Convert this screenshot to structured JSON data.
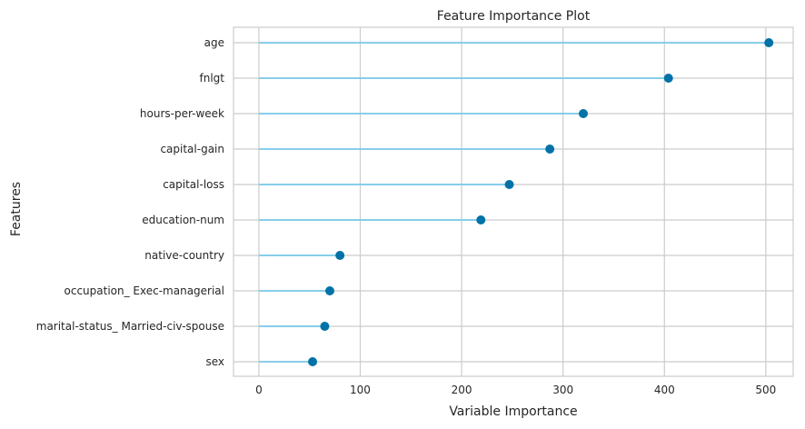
{
  "chart_data": {
    "type": "lollipop",
    "orientation": "horizontal",
    "title": "Feature Importance Plot",
    "xlabel": "Variable Importance",
    "ylabel": "Features",
    "xlim": [
      -25,
      527
    ],
    "xticks": [
      0,
      100,
      200,
      300,
      400,
      500
    ],
    "grid": true,
    "categories": [
      "age",
      "fnlgt",
      "hours-per-week",
      "capital-gain",
      "capital-loss",
      "education-num",
      "native-country",
      "occupation_ Exec-managerial",
      "marital-status_ Married-civ-spouse",
      "sex"
    ],
    "values": [
      503,
      404,
      320,
      287,
      247,
      219,
      80,
      70,
      65,
      53
    ]
  },
  "colors": {
    "stem": "#87ceeb",
    "marker": "#0072a7",
    "grid": "#cccccc",
    "axes": "#cccccc",
    "text": "#262626"
  }
}
